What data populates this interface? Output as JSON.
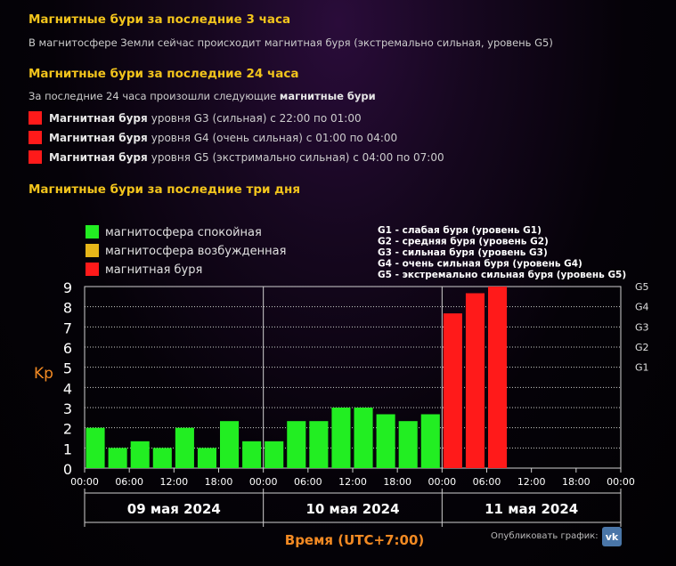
{
  "section1": {
    "title": "Магнитные бури за последние 3 часа",
    "text": "В магнитосфере Земли сейчас происходит магнитная буря (экстремально сильная, уровень G5)"
  },
  "section2": {
    "title": "Магнитные бури за последние 24 часа",
    "intro": "За последние 24 часа произошли следующие",
    "intro_bold": "магнитные бури",
    "storms": [
      {
        "bold": "Магнитная буря",
        "text": "уровня G3 (сильная) с 22:00 по 01:00",
        "color": "#ff1a1a"
      },
      {
        "bold": "Магнитная буря",
        "text": "уровня G4 (очень сильная) с 01:00 по 04:00",
        "color": "#ff1a1a"
      },
      {
        "bold": "Магнитная буря",
        "text": "уровня G5 (экстримально сильная) с 04:00 по 07:00",
        "color": "#ff1a1a"
      }
    ]
  },
  "section3": {
    "title": "Магнитные бури за последние три дня"
  },
  "footer": {
    "publish_label": "Опубликовать график:",
    "vk_icon": "vk-icon"
  },
  "chart_data": {
    "type": "bar",
    "ylabel": "Kp",
    "xlabel": "Время (UTC+7:00)",
    "ylim": [
      0,
      9
    ],
    "yticks": [
      0,
      1,
      2,
      3,
      4,
      5,
      6,
      7,
      8,
      9
    ],
    "grid": true,
    "legend": [
      {
        "label": "магнитосфера спокойная",
        "color": "#22ee22"
      },
      {
        "label": "магнитосфера возбужденная",
        "color": "#e6b619"
      },
      {
        "label": "магнитная буря",
        "color": "#ff1a1a"
      }
    ],
    "g_legend": [
      "G1 - слабая буря (уровень G1)",
      "G2 - средняя буря (уровень G2)",
      "G3 - сильная буря (уровень G3)",
      "G4 - очень сильная буря (уровень G4)",
      "G5 - экстремально сильная буря (уровень G5)"
    ],
    "g_axis": [
      {
        "label": "G1",
        "kp": 5
      },
      {
        "label": "G2",
        "kp": 6
      },
      {
        "label": "G3",
        "kp": 7
      },
      {
        "label": "G4",
        "kp": 8
      },
      {
        "label": "G5",
        "kp": 9
      }
    ],
    "x_tick_labels": [
      "00:00",
      "06:00",
      "12:00",
      "18:00",
      "00:00",
      "06:00",
      "12:00",
      "18:00",
      "00:00",
      "06:00",
      "12:00",
      "18:00",
      "00:00"
    ],
    "days": [
      "09 мая 2024",
      "10 мая 2024",
      "11 мая 2024"
    ],
    "bar_start_hours": [
      0,
      3,
      6,
      9,
      12,
      15,
      18,
      21,
      24,
      27,
      30,
      33,
      36,
      39,
      42,
      45,
      48,
      51,
      54
    ],
    "values": [
      2.0,
      1.0,
      1.33,
      1.0,
      2.0,
      1.0,
      2.33,
      1.33,
      1.33,
      2.33,
      2.33,
      3.0,
      3.0,
      2.67,
      2.33,
      2.67,
      7.67,
      8.67,
      9.0
    ],
    "colors": [
      "#22ee22",
      "#22ee22",
      "#22ee22",
      "#22ee22",
      "#22ee22",
      "#22ee22",
      "#22ee22",
      "#22ee22",
      "#22ee22",
      "#22ee22",
      "#22ee22",
      "#22ee22",
      "#22ee22",
      "#22ee22",
      "#22ee22",
      "#22ee22",
      "#ff1a1a",
      "#ff1a1a",
      "#ff1a1a"
    ]
  }
}
